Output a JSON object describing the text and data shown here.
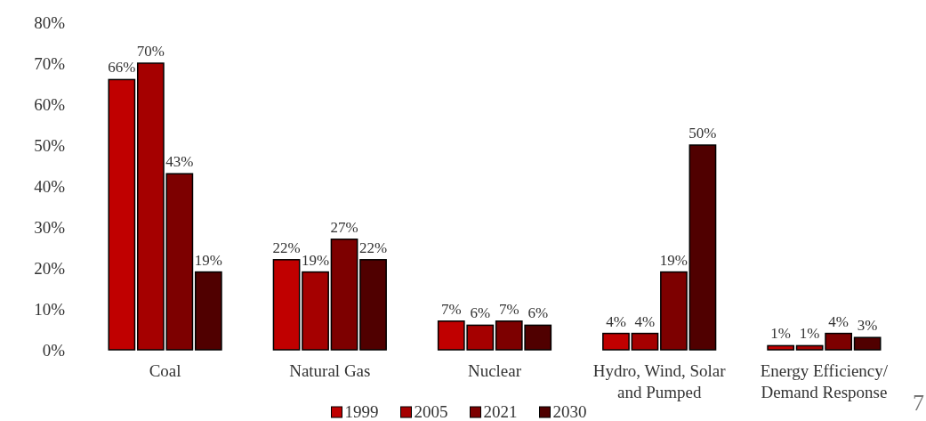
{
  "chart_data": {
    "type": "bar",
    "categories": [
      "Coal",
      "Natural Gas",
      "Nuclear",
      "Hydro, Wind, Solar and Pumped",
      "Energy Efficiency/ Demand Response"
    ],
    "series": [
      {
        "name": "1999",
        "color": "#c00000",
        "values": [
          66,
          22,
          7,
          4,
          1
        ],
        "value_labels": [
          "66%",
          "22%",
          "7%",
          "4%",
          "1%"
        ]
      },
      {
        "name": "2005",
        "color": "#a50000",
        "values": [
          70,
          19,
          6,
          4,
          1
        ],
        "value_labels": [
          "70%",
          "19%",
          "6%",
          "4%",
          "1%"
        ]
      },
      {
        "name": "2021",
        "color": "#7d0000",
        "values": [
          43,
          27,
          7,
          19,
          4
        ],
        "value_labels": [
          "43%",
          "27%",
          "7%",
          "19%",
          "4%"
        ]
      },
      {
        "name": "2030",
        "color": "#500000",
        "values": [
          19,
          22,
          6,
          50,
          3
        ],
        "value_labels": [
          "19%",
          "22%",
          "6%",
          "50%",
          "3%"
        ]
      }
    ],
    "ylim": [
      0,
      80
    ],
    "yticks": [
      {
        "value": 0,
        "label": "0%"
      },
      {
        "value": 10,
        "label": "10%"
      },
      {
        "value": 20,
        "label": "20%"
      },
      {
        "value": 30,
        "label": "30%"
      },
      {
        "value": 40,
        "label": "40%"
      },
      {
        "value": 50,
        "label": "50%"
      },
      {
        "value": 60,
        "label": "60%"
      },
      {
        "value": 70,
        "label": "70%"
      },
      {
        "value": 80,
        "label": "80%"
      }
    ],
    "legend": "bottom",
    "grid": false,
    "annotations": [
      "7"
    ]
  }
}
